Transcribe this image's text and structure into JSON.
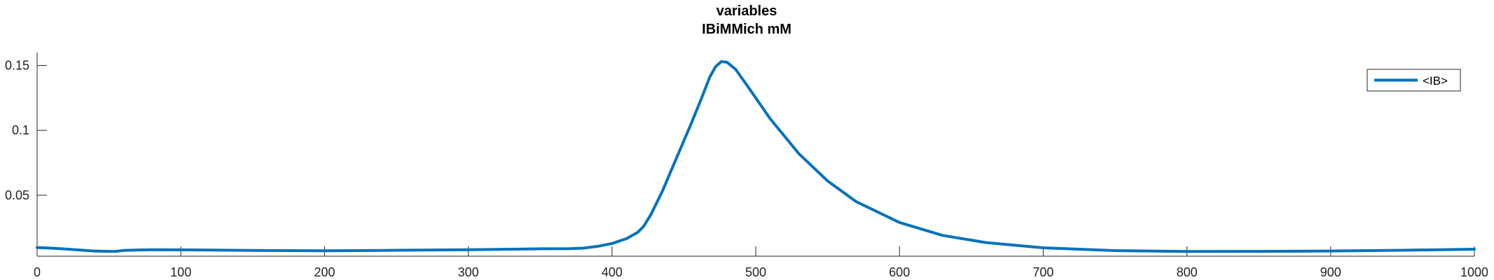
{
  "chart_data": {
    "type": "line",
    "title": [
      "variables",
      "IBiMMich mM"
    ],
    "xlabel": "",
    "ylabel": "",
    "xlim": [
      0,
      1000
    ],
    "ylim": [
      0.003,
      0.16
    ],
    "xticks": [
      0,
      100,
      200,
      300,
      400,
      500,
      600,
      700,
      800,
      900,
      1000
    ],
    "yticks": [
      0.05,
      0.1,
      0.15
    ],
    "ytick_labels": [
      "0.05",
      "0.1",
      "0.15"
    ],
    "grid": false,
    "legend": {
      "position": "top-right",
      "entries": [
        "<IB>"
      ]
    },
    "series": [
      {
        "name": "<IB>",
        "color": "#0072bd",
        "points": [
          [
            0,
            0.0097
          ],
          [
            10,
            0.0092
          ],
          [
            20,
            0.0085
          ],
          [
            30,
            0.0077
          ],
          [
            40,
            0.007
          ],
          [
            50,
            0.0067
          ],
          [
            55,
            0.0068
          ],
          [
            60,
            0.0074
          ],
          [
            70,
            0.0078
          ],
          [
            80,
            0.008
          ],
          [
            100,
            0.0079
          ],
          [
            150,
            0.0074
          ],
          [
            200,
            0.0072
          ],
          [
            240,
            0.0074
          ],
          [
            250,
            0.0076
          ],
          [
            300,
            0.008
          ],
          [
            340,
            0.0085
          ],
          [
            350,
            0.0087
          ],
          [
            370,
            0.0088
          ],
          [
            380,
            0.0092
          ],
          [
            390,
            0.0106
          ],
          [
            400,
            0.0128
          ],
          [
            410,
            0.0165
          ],
          [
            418,
            0.0215
          ],
          [
            422,
            0.026
          ],
          [
            427,
            0.035
          ],
          [
            435,
            0.053
          ],
          [
            445,
            0.079
          ],
          [
            455,
            0.105
          ],
          [
            462,
            0.124
          ],
          [
            468,
            0.141
          ],
          [
            472,
            0.149
          ],
          [
            476,
            0.153
          ],
          [
            480,
            0.1525
          ],
          [
            486,
            0.147
          ],
          [
            495,
            0.133
          ],
          [
            510,
            0.109
          ],
          [
            530,
            0.082
          ],
          [
            550,
            0.061
          ],
          [
            570,
            0.045
          ],
          [
            600,
            0.029
          ],
          [
            630,
            0.019
          ],
          [
            660,
            0.0135
          ],
          [
            700,
            0.0095
          ],
          [
            750,
            0.0073
          ],
          [
            800,
            0.0066
          ],
          [
            850,
            0.0067
          ],
          [
            900,
            0.007
          ],
          [
            950,
            0.0076
          ],
          [
            1000,
            0.0084
          ]
        ]
      }
    ]
  }
}
